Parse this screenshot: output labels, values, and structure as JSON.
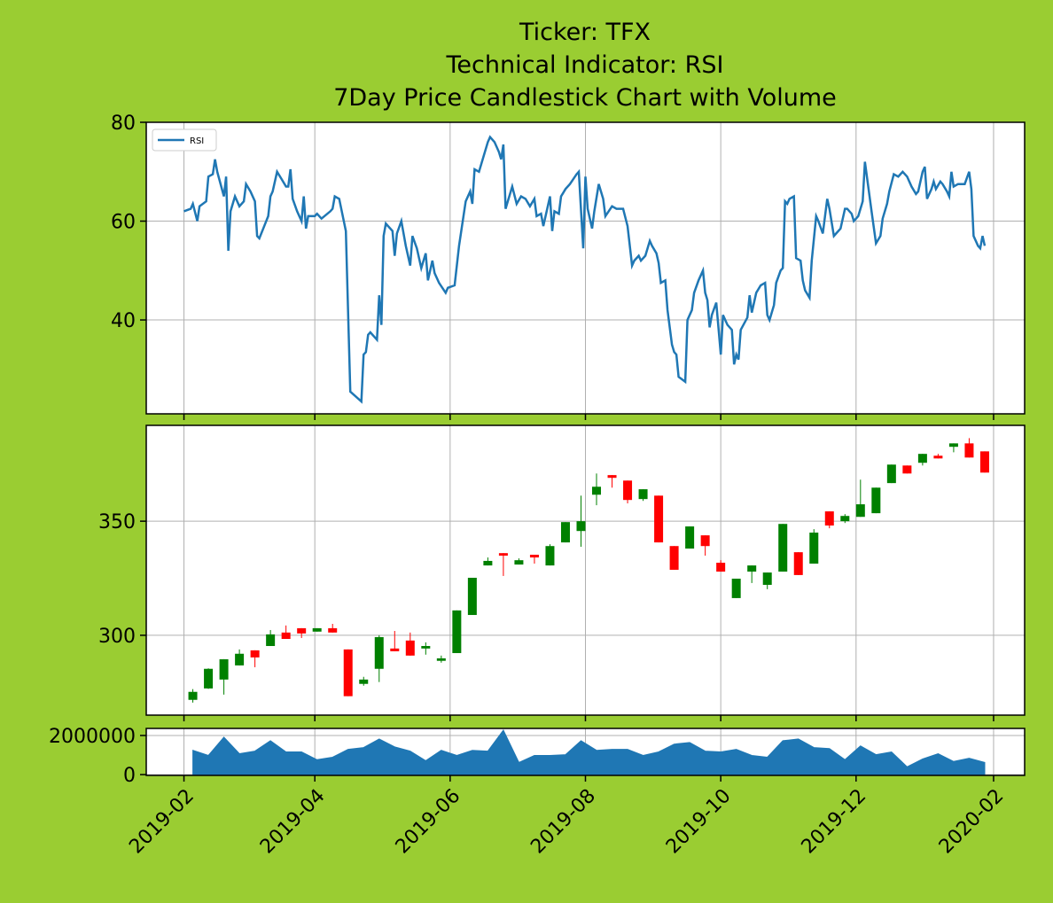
{
  "chart_data": [
    {
      "type": "line",
      "title": [
        "Ticker: TFX",
        "Technical Indicator: RSI",
        "7Day Price Candlestick Chart with Volume"
      ],
      "x": [
        31,
        34,
        35,
        37,
        38,
        41,
        42,
        44,
        45,
        46,
        49,
        50,
        51,
        52,
        54,
        56,
        58,
        59,
        61,
        63,
        64,
        65,
        69,
        70,
        71,
        73,
        75,
        77,
        78,
        79,
        80,
        82,
        84,
        85,
        86,
        87,
        90,
        91,
        93,
        97,
        98,
        99,
        101,
        104,
        106,
        111,
        112,
        113,
        114,
        115,
        118,
        119,
        120,
        121,
        122,
        125,
        126,
        127,
        129,
        131,
        133,
        134,
        136,
        138,
        140,
        141,
        143,
        144,
        146,
        149,
        150,
        153,
        155,
        157,
        158,
        160,
        161,
        162,
        164,
        166,
        168,
        169,
        171,
        173,
        174,
        175,
        176,
        177,
        179,
        181,
        183,
        185,
        187,
        189,
        190,
        192,
        193,
        196,
        197,
        198,
        200,
        201,
        203,
        205,
        208,
        209,
        211,
        212,
        213,
        215,
        216,
        218,
        220,
        221,
        224,
        226,
        229,
        231,
        233,
        234,
        236,
        237,
        239,
        241,
        242,
        244,
        245,
        246,
        248,
        249,
        251,
        252,
        253,
        254,
        257,
        258,
        260,
        261,
        263,
        265,
        266,
        267,
        268,
        269,
        271,
        273,
        274,
        276,
        278,
        279,
        280,
        281,
        282,
        285,
        286,
        287,
        289,
        291,
        293,
        294,
        295,
        297,
        298,
        300,
        301,
        302,
        303,
        304,
        306,
        307,
        309,
        310,
        311,
        313,
        314,
        316,
        317,
        319,
        321,
        322,
        324,
        325,
        327,
        329,
        330,
        332,
        333,
        335,
        337,
        338,
        341,
        343,
        345,
        346,
        348,
        349,
        351,
        353,
        355,
        357,
        359,
        361,
        362,
        364,
        365,
        366,
        368,
        369,
        370,
        372,
        373,
        375,
        376,
        377,
        378,
        380,
        383,
        385,
        386,
        387,
        389,
        390,
        391,
        392
      ],
      "series": [
        {
          "name": "RSI",
          "color": "#1f77b4",
          "values": [
            62,
            62.5,
            63.5,
            60,
            63,
            64,
            69,
            69.5,
            72.5,
            70,
            65,
            69,
            54,
            62,
            65,
            63,
            64,
            67.5,
            66,
            64,
            57,
            56.5,
            61,
            65,
            66,
            70,
            68.5,
            67,
            67,
            70.5,
            64.5,
            62,
            60,
            65,
            58.5,
            61,
            61,
            61.5,
            60.5,
            62,
            62.5,
            65,
            64.5,
            58,
            25.5,
            23.5,
            33,
            33.5,
            37,
            37.5,
            36,
            45,
            39,
            57,
            59.5,
            58,
            53,
            57.5,
            60,
            55,
            51,
            57,
            54.5,
            50.5,
            53.5,
            48,
            52,
            49.5,
            47.5,
            45.5,
            46.5,
            47,
            55,
            61,
            64,
            66,
            63.5,
            70.5,
            70,
            73,
            76,
            77,
            76,
            74,
            72.5,
            75.5,
            62.5,
            64,
            67,
            63.5,
            65,
            64.5,
            63,
            64.5,
            61,
            61.5,
            59,
            65,
            58,
            62,
            61.5,
            65,
            66.5,
            67.5,
            69.5,
            70,
            54.5,
            69,
            62.5,
            58.5,
            62,
            67.5,
            64.5,
            61,
            63,
            62.5,
            62.5,
            59,
            51,
            52,
            53,
            52,
            53,
            56,
            55,
            53.5,
            51.5,
            47.5,
            48,
            42,
            35,
            33.5,
            33,
            28.5,
            27.5,
            40,
            42,
            45.5,
            48,
            50,
            45.5,
            44,
            38.5,
            41,
            43.5,
            33,
            41,
            39,
            38,
            31,
            33,
            32,
            38,
            40.5,
            45,
            41.5,
            45.5,
            47,
            47.5,
            41,
            40,
            43,
            47.5,
            50,
            50.5,
            64,
            63.5,
            64.5,
            65,
            52.5,
            52,
            48,
            46,
            44.5,
            52,
            61,
            60,
            57.5,
            64.5,
            62.5,
            57,
            57.5,
            58.5,
            62.5,
            62.5,
            61.5,
            60,
            61,
            64,
            72,
            62,
            55.5,
            57,
            60.5,
            63.5,
            66,
            69.5,
            69,
            70,
            69,
            67,
            65.5,
            66,
            70,
            71,
            64.5,
            66.5,
            68,
            66.5,
            68,
            67.5,
            66,
            65,
            70,
            67,
            67.5,
            67.5,
            70,
            66.5,
            57,
            55,
            54.5,
            57,
            55
          ]
        }
      ],
      "xlim": [
        14,
        410
      ],
      "xticks": [
        31,
        90,
        151,
        212,
        273,
        334,
        396
      ],
      "ylim": [
        21,
        80
      ],
      "yticks": [
        40,
        60,
        80
      ],
      "grid": true,
      "legend": "upper left"
    },
    {
      "type": "candlestick",
      "x": [
        35,
        42,
        49,
        56,
        63,
        70,
        77,
        84,
        91,
        98,
        105,
        112,
        119,
        126,
        133,
        140,
        147,
        154,
        161,
        168,
        175,
        182,
        189,
        196,
        203,
        210,
        217,
        224,
        231,
        238,
        245,
        252,
        259,
        266,
        273,
        280,
        287,
        294,
        301,
        308,
        315,
        322,
        329,
        336,
        343,
        350,
        357,
        364,
        371,
        378,
        385,
        392
      ],
      "open": [
        271.7,
        276.7,
        280.6,
        286.8,
        293.4,
        295.3,
        301.2,
        303.1,
        301.6,
        303.1,
        293.8,
        278.7,
        285.3,
        294.2,
        297.7,
        294.2,
        288.8,
        292.2,
        308.9,
        330.6,
        336.0,
        331.0,
        335.3,
        330.6,
        340.7,
        345.7,
        361.6,
        370.2,
        367.8,
        359.7,
        361.2,
        339.1,
        338.0,
        343.8,
        331.8,
        316.3,
        327.9,
        322.1,
        327.9,
        336.4,
        331.4,
        354.3,
        350.0,
        351.9,
        353.5,
        366.7,
        374.4,
        375.6,
        378.7,
        382.6,
        384.1,
        380.6
      ],
      "high": [
        276.4,
        285.5,
        289.5,
        293.8,
        293.4,
        302.3,
        304.3,
        303.1,
        303.1,
        305.0,
        293.8,
        281.8,
        300.0,
        301.9,
        301.2,
        296.9,
        291.1,
        310.9,
        325.2,
        334.1,
        336.0,
        333.7,
        335.3,
        339.9,
        349.6,
        361.2,
        370.9,
        370.2,
        367.8,
        364.0,
        361.2,
        339.1,
        347.7,
        343.8,
        332.9,
        324.8,
        330.6,
        327.5,
        348.8,
        336.4,
        346.5,
        354.3,
        353.1,
        368.2,
        364.7,
        374.8,
        374.4,
        379.5,
        379.5,
        384.1,
        386.4,
        380.6
      ],
      "low": [
        270.5,
        276.5,
        274.0,
        286.8,
        286.0,
        295.3,
        298.4,
        298.8,
        301.6,
        301.2,
        273.3,
        277.9,
        279.5,
        293.0,
        291.1,
        291.5,
        288.0,
        292.2,
        308.9,
        330.6,
        326.0,
        331.0,
        331.4,
        330.6,
        340.7,
        338.8,
        357.0,
        364.7,
        357.8,
        358.9,
        340.7,
        328.7,
        338.0,
        334.9,
        327.9,
        316.3,
        322.9,
        320.2,
        327.9,
        326.4,
        331.4,
        346.9,
        349.2,
        351.9,
        353.5,
        366.7,
        370.9,
        374.4,
        377.5,
        380.2,
        377.9,
        371.3
      ],
      "close": [
        275.2,
        285.3,
        289.5,
        291.9,
        290.3,
        300.4,
        298.4,
        300.8,
        303.1,
        301.2,
        273.3,
        280.6,
        299.2,
        293.0,
        291.1,
        295.3,
        289.9,
        310.9,
        325.2,
        332.6,
        334.9,
        332.9,
        334.1,
        339.1,
        349.6,
        350.0,
        365.1,
        369.0,
        359.3,
        364.0,
        340.7,
        328.7,
        347.7,
        339.1,
        327.9,
        324.8,
        330.6,
        327.5,
        348.8,
        326.4,
        345.0,
        348.1,
        352.3,
        357.4,
        364.7,
        374.8,
        370.9,
        379.5,
        377.5,
        384.1,
        377.9,
        371.3
      ],
      "up_color": "green",
      "down_color": "red",
      "xlim": [
        14,
        410
      ],
      "xticks": [
        31,
        90,
        151,
        212,
        273,
        334,
        396
      ],
      "ylim": [
        265,
        392
      ],
      "yticks": [
        300,
        350
      ],
      "grid": true
    },
    {
      "type": "area",
      "x": [
        35,
        42,
        49,
        56,
        63,
        70,
        77,
        84,
        91,
        98,
        105,
        112,
        119,
        126,
        133,
        140,
        147,
        154,
        161,
        168,
        175,
        182,
        189,
        196,
        203,
        210,
        217,
        224,
        231,
        238,
        245,
        252,
        259,
        266,
        273,
        280,
        287,
        294,
        301,
        308,
        315,
        322,
        329,
        336,
        343,
        350,
        357,
        364,
        371,
        378,
        385,
        392
      ],
      "values": [
        1240000,
        980000,
        1910000,
        1070000,
        1200000,
        1730000,
        1160000,
        1160000,
        760000,
        890000,
        1290000,
        1380000,
        1820000,
        1420000,
        1200000,
        710000,
        1240000,
        980000,
        1240000,
        1200000,
        2270000,
        620000,
        980000,
        980000,
        1020000,
        1730000,
        1240000,
        1290000,
        1290000,
        980000,
        1160000,
        1560000,
        1640000,
        1200000,
        1160000,
        1290000,
        980000,
        890000,
        1730000,
        1820000,
        1380000,
        1330000,
        760000,
        1470000,
        1020000,
        1160000,
        400000,
        800000,
        1070000,
        670000,
        840000,
        620000
      ],
      "color": "#1f77b4",
      "xlim": [
        14,
        410
      ],
      "xticks": [
        {
          "value": 31,
          "label": "2019-02"
        },
        {
          "value": 90,
          "label": "2019-04"
        },
        {
          "value": 151,
          "label": "2019-06"
        },
        {
          "value": 212,
          "label": "2019-08"
        },
        {
          "value": 273,
          "label": "2019-10"
        },
        {
          "value": 334,
          "label": "2019-12"
        },
        {
          "value": 396,
          "label": "2020-02"
        }
      ],
      "ylim": [
        -40000,
        2360000
      ],
      "yticks": [
        0,
        2000000
      ],
      "grid": true
    }
  ]
}
